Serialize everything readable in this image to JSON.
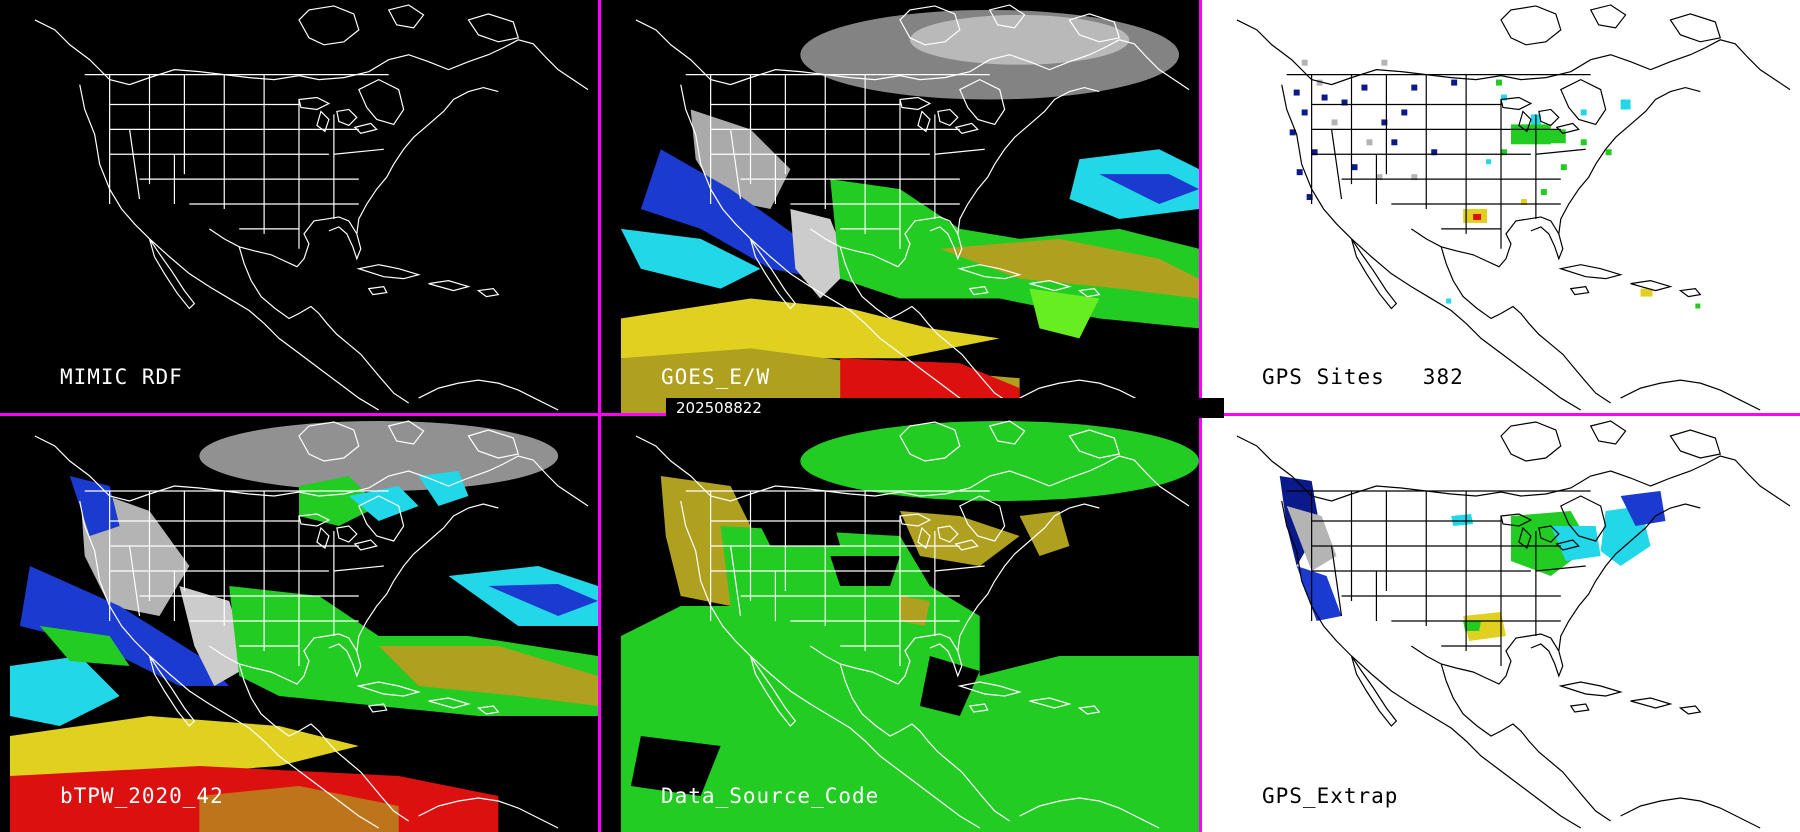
{
  "timestamp": "202508822",
  "panels": [
    {
      "id": "mimic",
      "label": "MIMIC RDF",
      "theme": "dark"
    },
    {
      "id": "goes",
      "label": "GOES_E/W",
      "theme": "dark"
    },
    {
      "id": "gps",
      "label": "GPS Sites",
      "count": "382",
      "theme": "light"
    },
    {
      "id": "btpw",
      "label": "bTPW_2020_42",
      "theme": "dark"
    },
    {
      "id": "dsc",
      "label": "Data_Source_Code",
      "theme": "dark"
    },
    {
      "id": "extrap",
      "label": "GPS_Extrap",
      "theme": "light"
    }
  ],
  "colors": {
    "divider": "#ff00ff",
    "dark_bg": "#000000",
    "light_bg": "#ffffff",
    "gray": "#b4b4b4",
    "navy": "#0a1a8a",
    "blue": "#1a3ad0",
    "cyan": "#22d8e8",
    "green": "#22cc22",
    "lime": "#66ee22",
    "olive": "#b0a020",
    "yellow": "#e0d020",
    "red": "#dd1010"
  }
}
